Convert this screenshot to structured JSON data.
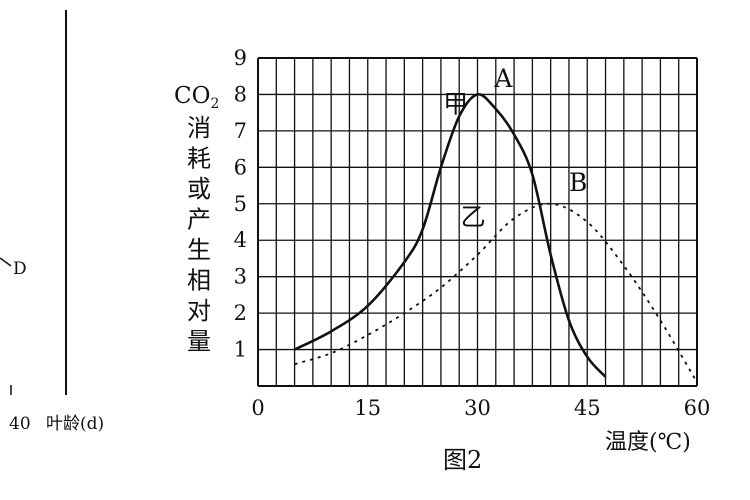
{
  "left_panel": {
    "label_d": "D",
    "axis_tick": "40",
    "axis_label": "叶龄(d)"
  },
  "chart_data": {
    "type": "line",
    "figure_label": "图2",
    "xlabel": "温度(℃)",
    "ylabel_prefix": "CO",
    "ylabel_sub": "2",
    "ylabel_rest": "消耗或产生相对量",
    "xlim": [
      0,
      60
    ],
    "ylim": [
      0,
      9
    ],
    "x_ticks": [
      0,
      15,
      30,
      45,
      60
    ],
    "y_ticks": [
      1,
      2,
      3,
      4,
      5,
      6,
      7,
      8,
      9
    ],
    "grid": true,
    "series": [
      {
        "name": "甲",
        "style": "solid",
        "x": [
          5,
          10,
          15,
          20,
          22.5,
          25,
          27.5,
          30,
          32.5,
          35,
          37.5,
          40,
          42.5,
          45,
          47.5
        ],
        "y": [
          1.0,
          1.5,
          2.2,
          3.4,
          4.3,
          6.0,
          7.4,
          8.0,
          7.6,
          6.9,
          5.8,
          3.6,
          1.8,
          0.8,
          0.25
        ]
      },
      {
        "name": "乙",
        "style": "dotted",
        "x": [
          5,
          10,
          15,
          20,
          25,
          30,
          35,
          40,
          45,
          50,
          55,
          60
        ],
        "y": [
          0.6,
          0.9,
          1.4,
          2.0,
          2.7,
          3.6,
          4.6,
          5.0,
          4.5,
          3.3,
          1.8,
          0.1
        ]
      }
    ],
    "annotations": [
      {
        "text": "A",
        "x": 30,
        "y": 8
      },
      {
        "text": "B",
        "x": 40,
        "y": 5
      }
    ]
  }
}
